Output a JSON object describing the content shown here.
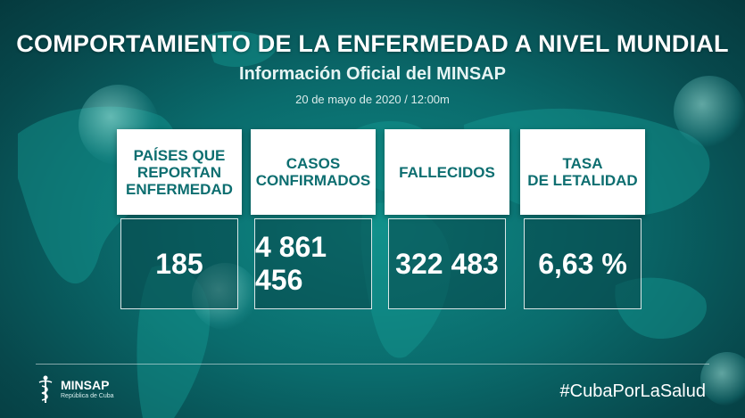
{
  "header": {
    "title": "COMPORTAMIENTO DE LA ENFERMEDAD A NIVEL MUNDIAL",
    "subtitle": "Información Oficial del MINSAP",
    "date": "20 de mayo de 2020 / 12:00m"
  },
  "cards": [
    {
      "label": "PAÍSES QUE\nREPORTAN\nENFERMEDAD",
      "value": "185"
    },
    {
      "label": "CASOS\nCONFIRMADOS",
      "value": "4 861 456"
    },
    {
      "label": "FALLECIDOS",
      "value": "322 483"
    },
    {
      "label": "TASA\nDE LETALIDAD",
      "value": "6,63 %"
    }
  ],
  "footer": {
    "logo_name": "MINSAP",
    "logo_sub": "República de Cuba",
    "hashtag": "#CubaPorLaSalud"
  },
  "colors": {
    "background": "#0a6b6c",
    "card_header_bg": "#ffffff",
    "card_header_text": "#0d6e70"
  }
}
